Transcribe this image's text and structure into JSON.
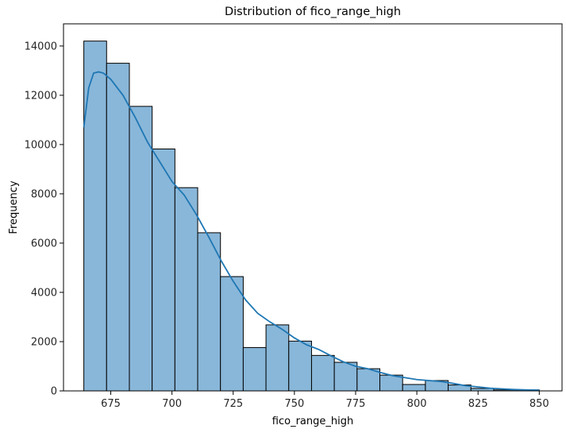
{
  "chart_data": {
    "type": "bar",
    "title": "Distribution of fico_range_high",
    "xlabel": "fico_range_high",
    "ylabel": "Frequency",
    "xlim": [
      655.7,
      859.3
    ],
    "ylim": [
      0,
      14900
    ],
    "xticks": [
      675,
      700,
      725,
      750,
      775,
      800,
      825,
      850
    ],
    "yticks": [
      0,
      2000,
      4000,
      6000,
      8000,
      10000,
      12000,
      14000
    ],
    "bin_edges": [
      664,
      673.3,
      682.6,
      691.9,
      701.2,
      710.5,
      719.8,
      729.1,
      738.4,
      747.7,
      757,
      766.3,
      775.6,
      784.9,
      794.2,
      803.5,
      812.8,
      822.1,
      831.4,
      840.7,
      850
    ],
    "values": [
      14200,
      13300,
      11550,
      9820,
      8250,
      6420,
      4640,
      1760,
      2680,
      2020,
      1440,
      1160,
      900,
      640,
      260,
      420,
      240,
      100,
      40,
      40
    ],
    "kde": {
      "x": [
        664,
        666,
        668,
        670,
        672,
        675,
        680,
        685,
        690,
        695,
        700,
        705,
        710,
        715,
        720,
        725,
        730,
        735,
        740,
        745,
        750,
        755,
        760,
        765,
        770,
        775,
        780,
        785,
        790,
        795,
        800,
        805,
        810,
        815,
        820,
        825,
        830,
        835,
        840,
        845,
        850
      ],
      "y": [
        10700,
        12300,
        12900,
        12950,
        12900,
        12650,
        12000,
        11100,
        10100,
        9300,
        8500,
        7950,
        7150,
        6250,
        5300,
        4450,
        3700,
        3150,
        2800,
        2500,
        2150,
        1870,
        1680,
        1420,
        1180,
        1000,
        900,
        750,
        620,
        540,
        460,
        420,
        380,
        300,
        210,
        160,
        110,
        80,
        55,
        40,
        30
      ]
    },
    "bar_fill": "#89b7d9",
    "bar_edge": "#000000",
    "line_color": "#1f77b4",
    "grid": false,
    "legend": false
  }
}
